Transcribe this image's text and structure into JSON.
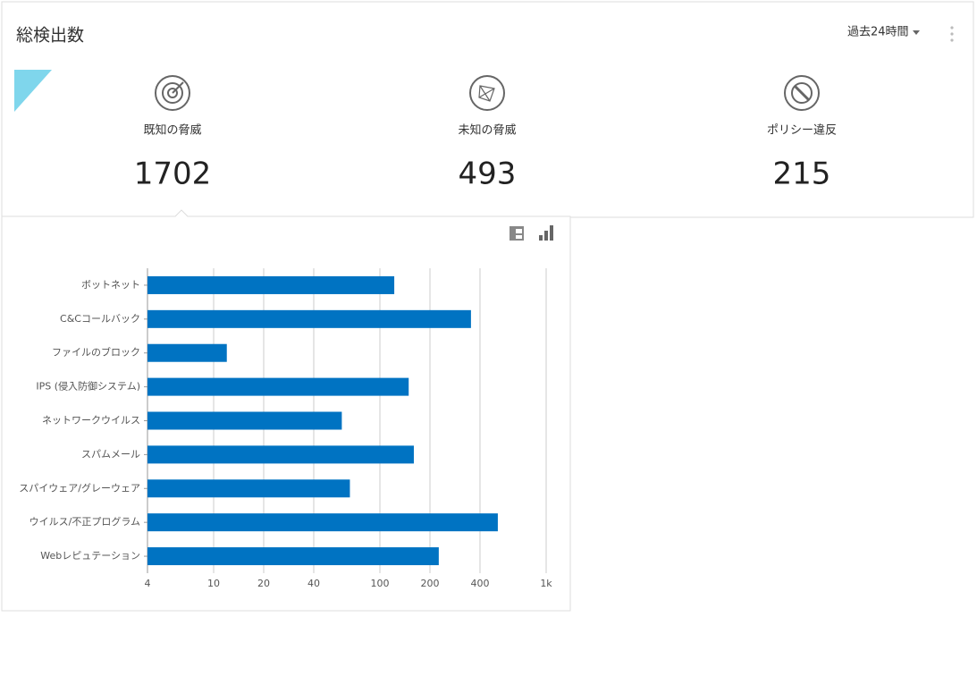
{
  "header": {
    "title": "総検出数",
    "period": "過去24時間"
  },
  "stats": [
    {
      "label": "既知の脅威",
      "value": 1702
    },
    {
      "label": "未知の脅威",
      "value": 493
    },
    {
      "label": "ポリシー違反",
      "value": 215
    }
  ],
  "chart_data": {
    "type": "bar",
    "orientation": "horizontal",
    "color": "#0073c2",
    "categories": [
      "ボットネット",
      "C&Cコールバック",
      "ファイルのブロック",
      "IPS (侵入防御システム)",
      "ネットワークウイルス",
      "スパムメール",
      "スパイウェア/グレーウェア",
      "ウイルス/不正プログラム",
      "Webレピュテーション"
    ],
    "values": [
      122,
      353,
      12,
      149,
      59,
      160,
      66,
      512,
      226
    ],
    "xscale": "log",
    "xlim": [
      4,
      1000
    ],
    "xticks": [
      4,
      10,
      20,
      40,
      100,
      200,
      400,
      {
        "value": 1000,
        "label": "1k"
      }
    ],
    "grid": true
  }
}
